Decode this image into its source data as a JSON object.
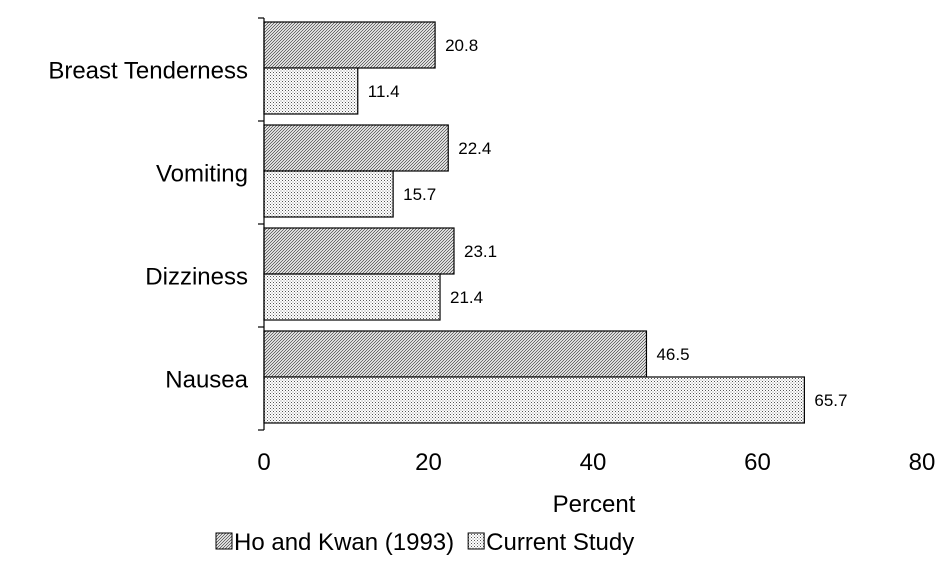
{
  "chart_data": {
    "type": "bar",
    "orientation": "horizontal",
    "categories": [
      "Breast Tenderness",
      "Vomiting",
      "Dizziness",
      "Nausea"
    ],
    "series": [
      {
        "name": "Ho and Kwan (1993)",
        "values": [
          20.8,
          22.4,
          23.1,
          46.5
        ],
        "pattern": "diagonal-hatch"
      },
      {
        "name": "Current Study",
        "values": [
          11.4,
          15.7,
          21.4,
          65.7
        ],
        "pattern": "dotted"
      }
    ],
    "xlabel": "Percent",
    "ylabel": "",
    "xlim": [
      0,
      80
    ],
    "xticks": [
      0,
      20,
      40,
      60,
      80
    ],
    "grid": false,
    "legend_position": "bottom"
  },
  "colors": {
    "bar_stroke": "#000000",
    "axis": "#000000",
    "background": "#ffffff"
  }
}
